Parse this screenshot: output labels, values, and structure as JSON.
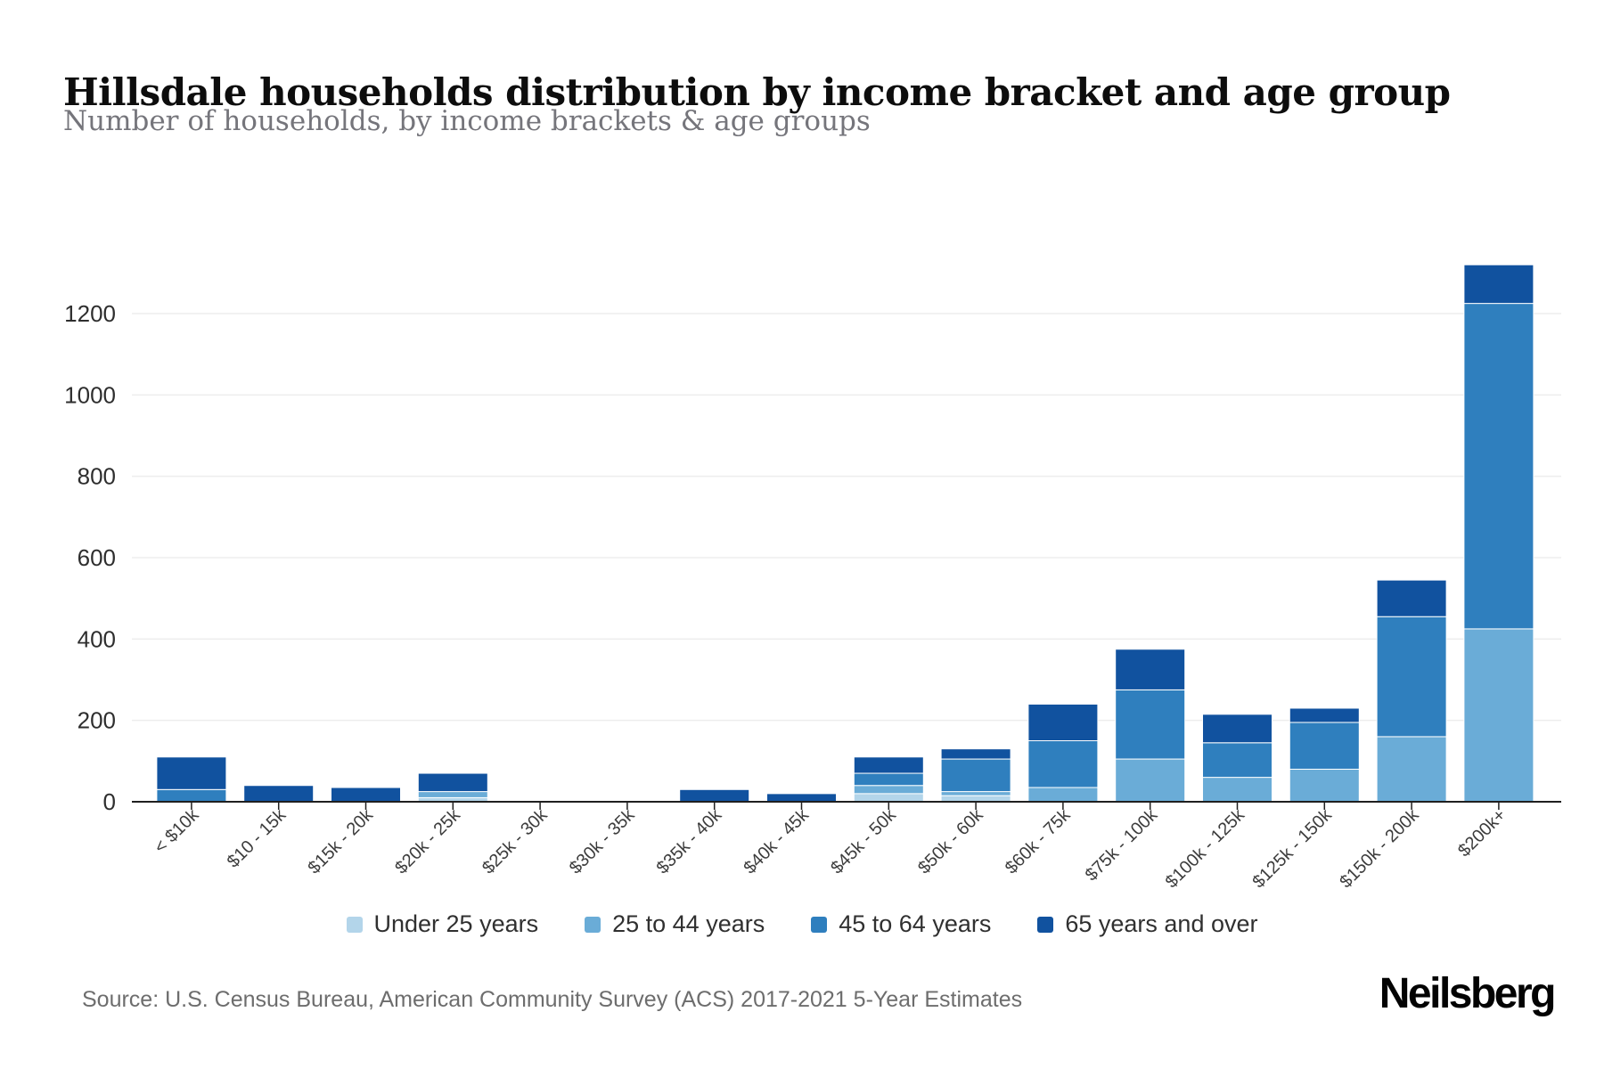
{
  "header": {
    "title": "Hillsdale households distribution by income bracket and age group",
    "subtitle": "Number of households, by income brackets & age groups"
  },
  "footer": {
    "source": "Source: U.S. Census Bureau, American Community Survey (ACS) 2017-2021 5-Year Estimates",
    "logo": "Neilsberg"
  },
  "chart_data": {
    "type": "bar",
    "stacked": true,
    "title": "Hillsdale households distribution by income bracket and age group",
    "subtitle": "Number of households, by income brackets & age groups",
    "categories": [
      "< $10k",
      "$10 - 15k",
      "$15k - 20k",
      "$20k - 25k",
      "$25k - 30k",
      "$30k - 35k",
      "$35k - 40k",
      "$40k - 45k",
      "$45k - 50k",
      "$50k - 60k",
      "$60k - 75k",
      "$75k - 100k",
      "$100k - 125k",
      "$125k - 150k",
      "$150k - 200k",
      "$200k+"
    ],
    "series": [
      {
        "name": "Under 25 years",
        "color": "#b3d5ea",
        "values": [
          0,
          0,
          0,
          10,
          0,
          0,
          0,
          0,
          20,
          15,
          0,
          0,
          0,
          0,
          0,
          0
        ]
      },
      {
        "name": "25 to 44 years",
        "color": "#6aacd7",
        "values": [
          0,
          0,
          0,
          15,
          0,
          0,
          0,
          0,
          20,
          10,
          35,
          105,
          60,
          80,
          160,
          425
        ]
      },
      {
        "name": "45 to 64 years",
        "color": "#2f7fbe",
        "values": [
          30,
          0,
          0,
          0,
          0,
          0,
          0,
          0,
          30,
          80,
          115,
          170,
          85,
          115,
          295,
          800
        ]
      },
      {
        "name": "65 years and over",
        "color": "#11529f",
        "values": [
          80,
          40,
          35,
          45,
          0,
          0,
          30,
          20,
          40,
          25,
          90,
          100,
          70,
          35,
          90,
          95
        ]
      }
    ],
    "totals": [
      110,
      40,
      35,
      70,
      0,
      0,
      30,
      20,
      110,
      130,
      240,
      375,
      215,
      230,
      545,
      1320
    ],
    "yticks": [
      0,
      200,
      400,
      600,
      800,
      1000,
      1200
    ],
    "ylim": [
      0,
      1320
    ],
    "xlabel": "",
    "ylabel": "",
    "grid": true,
    "legend_position": "bottom"
  }
}
